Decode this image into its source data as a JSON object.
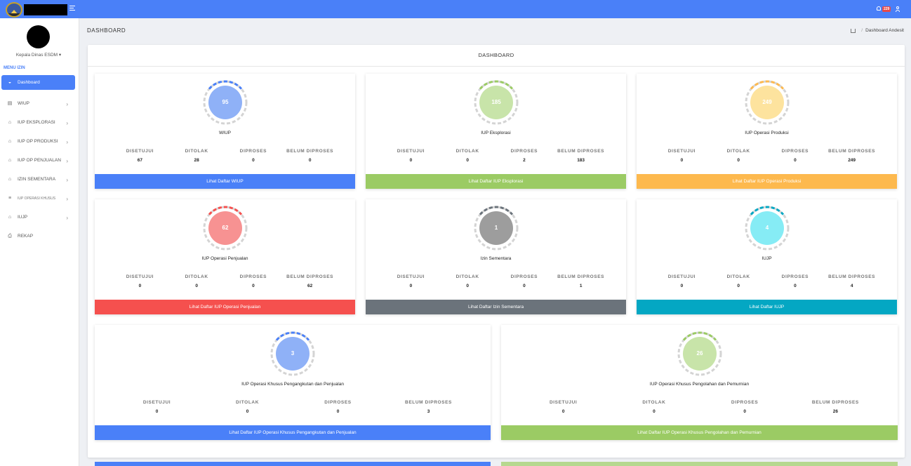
{
  "header": {
    "notification_count": "229"
  },
  "sidebar": {
    "role": "Kepala Dinas ESDM ▾",
    "menu_title": "MENU IZIN",
    "items": [
      {
        "label": "Dashboard",
        "icon": "dashboard-icon"
      },
      {
        "label": "WIUP",
        "icon": "file-icon"
      },
      {
        "label": "IUP EKSPLORASI",
        "icon": "home-icon"
      },
      {
        "label": "IUP OP PRODUKSI",
        "icon": "home-icon"
      },
      {
        "label": "IUP OP PENJUALAN",
        "icon": "home-icon"
      },
      {
        "label": "IZIN SEMENTARA",
        "icon": "home-icon"
      },
      {
        "label": "IUP OPERASI KHUSUS",
        "icon": "list-icon"
      },
      {
        "label": "IUJP",
        "icon": "home-icon"
      },
      {
        "label": "REKAP",
        "icon": "print-icon"
      }
    ]
  },
  "page": {
    "title": "DASHBOARD",
    "breadcrumb_current": "Dashboard Andesit",
    "breadcrumb_sep": "/"
  },
  "panel": {
    "title": "DASHBOARD"
  },
  "stat_labels": {
    "approved": "DISETUJUI",
    "rejected": "DITOLAK",
    "processed": "DIPROSES",
    "not_processed": "BELUM DIPROSES"
  },
  "cards": [
    {
      "value": "95",
      "title": "WIUP",
      "approved": "67",
      "rejected": "28",
      "processed": "0",
      "not_processed": "0",
      "link": "Lihat Daftar WIUP",
      "color": "#4a80f8",
      "circle": "#8fb1f7"
    },
    {
      "value": "185",
      "title": "IUP Eksplorasi",
      "approved": "0",
      "rejected": "0",
      "processed": "2",
      "not_processed": "183",
      "link": "Lihat Daftar IUP Eksplorasi",
      "color": "#9bcb64",
      "circle": "#c8e4a9"
    },
    {
      "value": "249",
      "title": "IUP Operasi Produksi",
      "approved": "0",
      "rejected": "0",
      "processed": "0",
      "not_processed": "249",
      "link": "Lihat Daftar IUP Operasi Produksi",
      "color": "#fdb94e",
      "circle": "#fde39e"
    },
    {
      "value": "62",
      "title": "IUP Operasi Penjualan",
      "approved": "0",
      "rejected": "0",
      "processed": "0",
      "not_processed": "62",
      "link": "Lihat Daftar IUP Operasi Penjualan",
      "color": "#f5504e",
      "circle": "#f79292"
    },
    {
      "value": "1",
      "title": "Izin Sementara",
      "approved": "0",
      "rejected": "0",
      "processed": "0",
      "not_processed": "1",
      "link": "Lihat Daftar Izin Sementara",
      "color": "#6b737b",
      "circle": "#9d9d9d"
    },
    {
      "value": "4",
      "title": "IUJP",
      "approved": "0",
      "rejected": "0",
      "processed": "0",
      "not_processed": "4",
      "link": "Lihat Daftar IUJP",
      "color": "#04a7c3",
      "circle": "#86ecf5"
    },
    {
      "value": "3",
      "title": "IUP Operasi Khusus Pengangkutan dan Penjualan",
      "approved": "0",
      "rejected": "0",
      "processed": "0",
      "not_processed": "3",
      "link": "Lihat Daftar IUP Operasi Khusus Pengangkutan dan Penjualan",
      "color": "#4a80f8",
      "circle": "#8fb1f7"
    },
    {
      "value": "26",
      "title": "IUP Operasi Khusus Pengolahan dan Pemurnian",
      "approved": "0",
      "rejected": "0",
      "processed": "0",
      "not_processed": "26",
      "link": "Lihat Daftar IUP Operasi Khusus Pengolahan dan Pemurnian",
      "color": "#9bcb64",
      "circle": "#c8e4a9"
    }
  ]
}
